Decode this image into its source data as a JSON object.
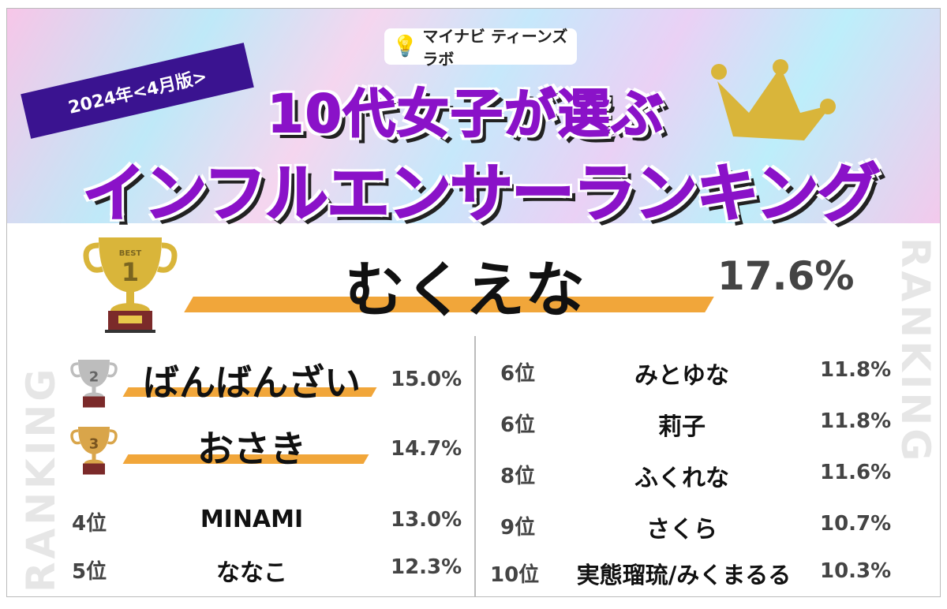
{
  "header": {
    "logo_text": "マイナビ ティーンズラボ",
    "logo_sub": "Lab",
    "edition": "2024年<4月版>",
    "title_line1": "10代女子が選ぶ",
    "title_line2": "インフルエンサーランキング"
  },
  "watermark": "RANKING",
  "trophy_label": "BEST",
  "top3": [
    {
      "rank": "1",
      "name": "むくえな",
      "percent": "17.6%"
    },
    {
      "rank": "2",
      "name": "ばんばんざい",
      "percent": "15.0%"
    },
    {
      "rank": "3",
      "name": "おさき",
      "percent": "14.7%"
    }
  ],
  "left_list": [
    {
      "rank": "4位",
      "name": "MINAMI",
      "percent": "13.0%"
    },
    {
      "rank": "5位",
      "name": "ななこ",
      "percent": "12.3%"
    }
  ],
  "right_list": [
    {
      "rank": "6位",
      "name": "みとゆな",
      "percent": "11.8%"
    },
    {
      "rank": "6位",
      "name": "莉子",
      "percent": "11.8%"
    },
    {
      "rank": "8位",
      "name": "ふくれな",
      "percent": "11.6%"
    },
    {
      "rank": "9位",
      "name": "さくら",
      "percent": "10.7%"
    },
    {
      "rank": "10位",
      "name": "実態瑠琉/みくまるる",
      "percent": "10.3%"
    }
  ],
  "colors": {
    "title": "#8a12c8",
    "badge": "#3a1390",
    "bar": "#f1a63a",
    "gold": "#d9b53a",
    "silver": "#bdbdbd",
    "bronze": "#d9a54a"
  }
}
